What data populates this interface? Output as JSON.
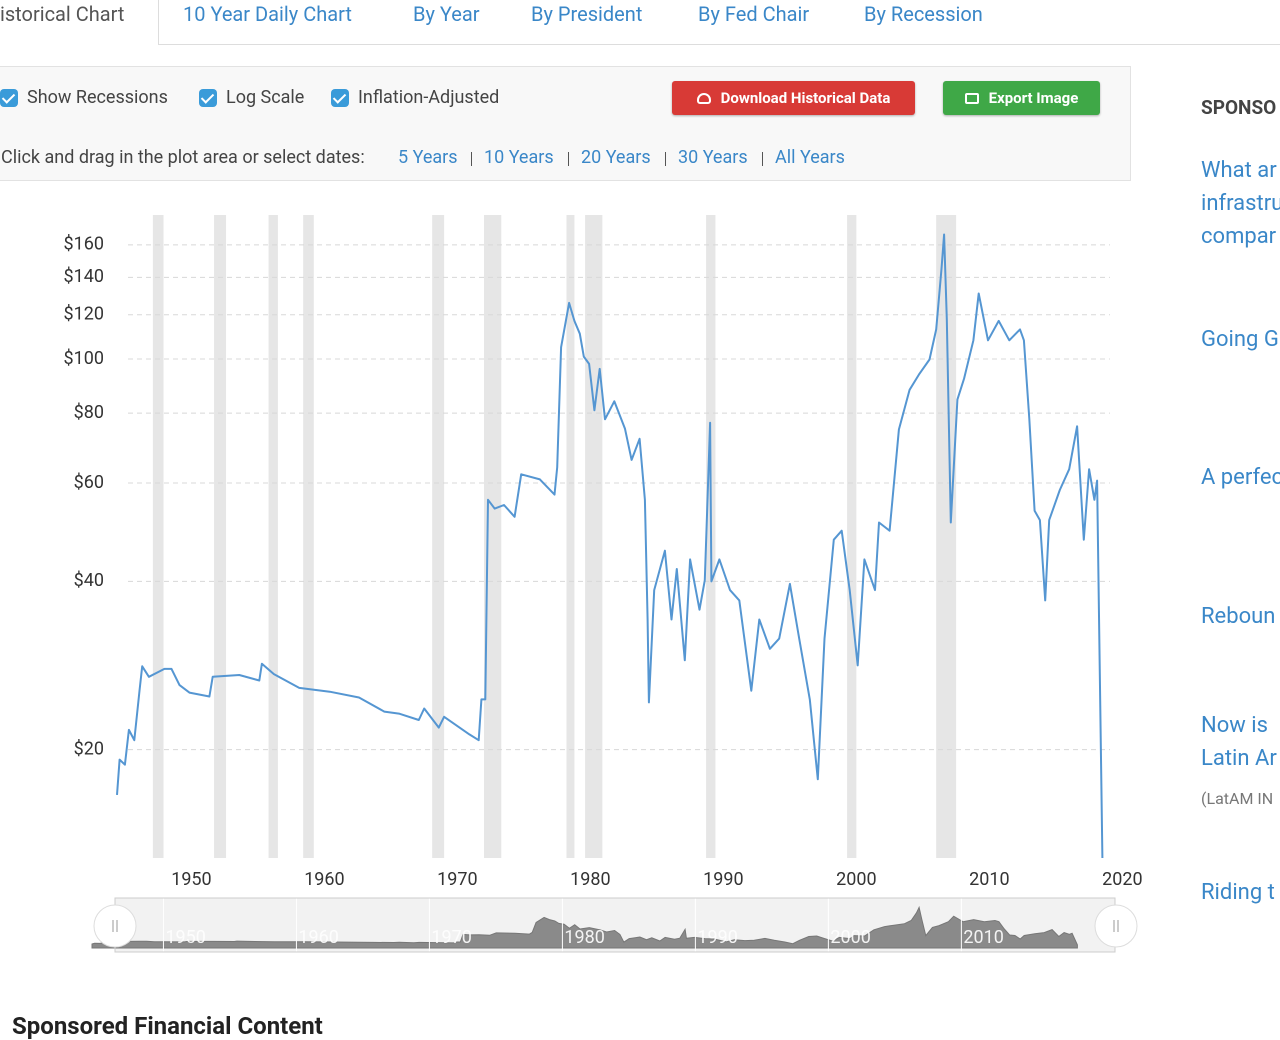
{
  "tabs": [
    "istorical Chart",
    "10 Year Daily Chart",
    "By Year",
    "By President",
    "By Fed Chair",
    "By Recession"
  ],
  "options": [
    "Show Recessions",
    "Log Scale",
    "Inflation-Adjusted"
  ],
  "buttons": [
    "Download Historical Data",
    "Export Image"
  ],
  "range_prompt": "Click and drag in the plot area or select dates:",
  "range_links": [
    "5 Years",
    "10 Years",
    "20 Years",
    "30 Years",
    "All Years"
  ],
  "sidebar": {
    "heading": "SPONSO",
    "links": [
      {
        "lines": [
          "What ar",
          "infrastru",
          "compar"
        ]
      },
      {
        "lines": [
          "Going G"
        ]
      },
      {
        "lines": [
          "A perfec"
        ]
      },
      {
        "lines": [
          "Reboun"
        ]
      },
      {
        "lines": [
          "Now is",
          "Latin Ar"
        ],
        "note": "(LatAM IN"
      },
      {
        "lines": [
          "Riding t"
        ]
      }
    ]
  },
  "footer_heading": "Sponsored Financial Content",
  "chart_data": {
    "type": "line",
    "log_scale": true,
    "grid": true,
    "color": "#5596d2",
    "recession_color": "#e6e6e6",
    "x": [
      1944.4,
      1944.6,
      1945.0,
      1945.3,
      1945.7,
      1946.1,
      1946.3,
      1946.8,
      1947.97,
      1948.5,
      1949.1,
      1949.85,
      1951.35,
      1951.6,
      1953.6,
      1955.1,
      1955.3,
      1956.2,
      1958.1,
      1960.4,
      1962.6,
      1964.5,
      1965.6,
      1967.1,
      1967.5,
      1968.6,
      1969.0,
      1970.9,
      1971.6,
      1971.8,
      1972.1,
      1972.3,
      1972.8,
      1973.5,
      1974.3,
      1974.8,
      1976.2,
      1977.3,
      1977.5,
      1977.8,
      1978.4,
      1978.8,
      1979.2,
      1979.5,
      1979.9,
      1980.3,
      1980.7,
      1981.1,
      1981.8,
      1982.6,
      1983.1,
      1983.7,
      1984.1,
      1984.3,
      1984.4,
      1984.8,
      1985.6,
      1986.1,
      1986.5,
      1987.1,
      1987.5,
      1988.2,
      1988.6,
      1989.0,
      1989.1,
      1989.7,
      1990.5,
      1991.2,
      1992.1,
      1992.7,
      1993.5,
      1994.2,
      1995.0,
      1995.7,
      1996.5,
      1997.1,
      1997.6,
      1998.3,
      1998.9,
      1999.5,
      2000.1,
      2000.6,
      2001.4,
      2001.7,
      2002.5,
      2003.2,
      2004.0,
      2004.7,
      2005.5,
      2006.0,
      2006.4,
      2006.6,
      2006.8,
      2007.1,
      2007.6,
      2008.1,
      2008.8,
      2009.2,
      2009.9,
      2010.7,
      2011.5,
      2012.3,
      2012.6,
      2013.0,
      2013.4,
      2013.8,
      2014.2,
      2014.5,
      2015.3,
      2016.0,
      2016.6,
      2017.1,
      2017.5,
      2017.9,
      2018.1,
      2018.5
    ],
    "values": [
      16.6,
      19.2,
      18.8,
      21.7,
      20.8,
      25.6,
      28.2,
      27.0,
      27.9,
      27.9,
      26.1,
      25.3,
      24.9,
      27.0,
      27.2,
      26.6,
      28.5,
      27.3,
      25.8,
      25.4,
      24.8,
      23.4,
      23.2,
      22.6,
      23.7,
      21.9,
      22.9,
      21.3,
      20.8,
      24.6,
      24.6,
      56.0,
      54.0,
      54.8,
      52.2,
      62.2,
      60.9,
      57.2,
      64.0,
      105,
      126,
      117,
      111,
      101,
      98,
      81,
      96,
      78,
      84,
      75,
      66,
      72,
      56,
      34.2,
      24.3,
      38.6,
      45.4,
      34.2,
      42.1,
      28.9,
      43.8,
      35.6,
      40.2,
      76.9,
      40,
      43.8,
      38.6,
      37.0,
      25.5,
      34.2,
      30.3,
      31.6,
      39.6,
      31.6,
      24.6,
      17.7,
      31.6,
      47.5,
      49.3,
      38.6,
      28.3,
      43.8,
      38.6,
      51.0,
      49.3,
      74.8,
      88.1,
      93.8,
      99.8,
      113,
      145,
      167,
      118,
      51,
      84.6,
      92.3,
      108,
      131,
      108,
      117,
      108,
      113,
      108,
      78.2,
      53.5,
      51.5,
      37,
      51.5,
      58.3,
      63.5,
      75.8,
      47.5,
      63.5,
      56,
      60.6,
      12.8
    ],
    "recessions": [
      [
        1947.1,
        1947.9
      ],
      [
        1951.7,
        1952.6
      ],
      [
        1955.8,
        1956.5
      ],
      [
        1958.4,
        1959.2
      ],
      [
        1968.1,
        1969.0
      ],
      [
        1972.0,
        1973.3
      ],
      [
        1978.2,
        1978.8
      ],
      [
        1979.6,
        1980.9
      ],
      [
        1988.7,
        1989.4
      ],
      [
        1999.3,
        2000.0
      ],
      [
        2006.0,
        2007.5
      ]
    ],
    "xlim": [
      1943.5,
      2020.5
    ],
    "ylim": [
      12.8,
      181
    ],
    "xticks": [
      1950,
      1960,
      1970,
      1980,
      1990,
      2000,
      2010,
      2020
    ],
    "yticks": [
      {
        "value": 20,
        "label": "$20"
      },
      {
        "value": 40,
        "label": "$40"
      },
      {
        "value": 60,
        "label": "$60"
      },
      {
        "value": 80,
        "label": "$80"
      },
      {
        "value": 100,
        "label": "$100"
      },
      {
        "value": 120,
        "label": "$120"
      },
      {
        "value": 140,
        "label": "$140"
      },
      {
        "value": 160,
        "label": "$160"
      }
    ],
    "navigator_labels": [
      1950,
      1960,
      1970,
      1980,
      1990,
      2000,
      2010
    ]
  }
}
